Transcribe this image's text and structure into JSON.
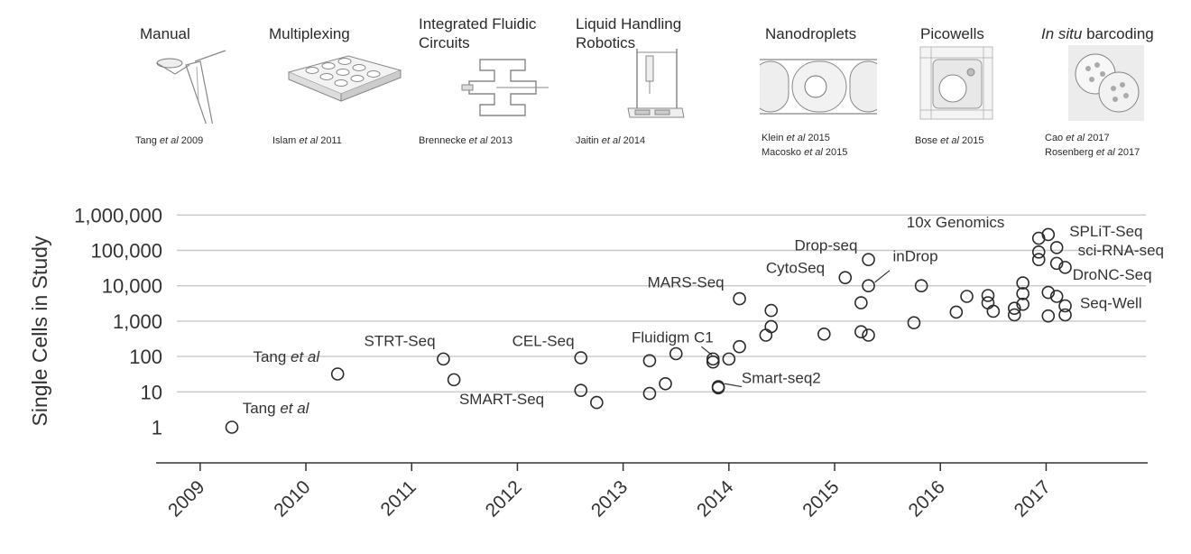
{
  "methods": [
    {
      "title": "Manual",
      "ref_lines": [
        {
          "a": "Tang ",
          "i": "et al",
          "b": " 2009"
        }
      ]
    },
    {
      "title": "Multiplexing",
      "ref_lines": [
        {
          "a": "Islam ",
          "i": "et al",
          "b": " 2011"
        }
      ]
    },
    {
      "title_lines": [
        "Integrated Fluidic",
        "Circuits"
      ],
      "ref_lines": [
        {
          "a": "Brennecke ",
          "i": "et al",
          "b": " 2013"
        }
      ]
    },
    {
      "title_lines": [
        "Liquid Handling",
        "Robotics"
      ],
      "ref_lines": [
        {
          "a": "Jaitin ",
          "i": "et al",
          "b": " 2014"
        }
      ]
    },
    {
      "title": "Nanodroplets",
      "ref_lines": [
        {
          "a": "Klein ",
          "i": "et al",
          "b": " 2015"
        },
        {
          "a": "Macosko ",
          "i": "et al",
          "b": " 2015"
        }
      ]
    },
    {
      "title": "Picowells",
      "ref_lines": [
        {
          "a": "Bose ",
          "i": "et al",
          "b": " 2015"
        }
      ]
    },
    {
      "title_italic": "In situ",
      "title_rest": " barcoding",
      "ref_lines": [
        {
          "a": "Cao ",
          "i": "et al",
          "b": " 2017"
        },
        {
          "a": "Rosenberg ",
          "i": "et al",
          "b": " 2017"
        }
      ]
    }
  ],
  "chart_data": {
    "type": "scatter",
    "ylabel": "Single Cells in Study",
    "xlabel": "",
    "y_scale": "log",
    "ylim": [
      1,
      1000000
    ],
    "y_ticks": [
      1,
      10,
      100,
      1000,
      10000,
      100000,
      1000000
    ],
    "y_tick_labels": [
      "1",
      "10",
      "100",
      "1,000",
      "10,000",
      "100,000",
      "1,000,000"
    ],
    "xlim": [
      2009.0,
      2017.7
    ],
    "x_ticks": [
      2009,
      2010,
      2011,
      2012,
      2013,
      2014,
      2015,
      2016,
      2017
    ],
    "x_tick_labels": [
      "2009",
      "2010",
      "2011",
      "2012",
      "2013",
      "2014",
      "2015",
      "2016",
      "2017"
    ],
    "grid": "horizontal",
    "points": [
      {
        "x": 2009.3,
        "y": 1
      },
      {
        "x": 2010.3,
        "y": 32
      },
      {
        "x": 2011.3,
        "y": 85
      },
      {
        "x": 2011.4,
        "y": 22
      },
      {
        "x": 2012.6,
        "y": 92
      },
      {
        "x": 2012.6,
        "y": 11
      },
      {
        "x": 2012.75,
        "y": 5
      },
      {
        "x": 2013.25,
        "y": 76
      },
      {
        "x": 2013.25,
        "y": 9
      },
      {
        "x": 2013.4,
        "y": 17
      },
      {
        "x": 2013.5,
        "y": 120
      },
      {
        "x": 2013.85,
        "y": 85
      },
      {
        "x": 2013.85,
        "y": 70
      },
      {
        "x": 2013.9,
        "y": 14
      },
      {
        "x": 2013.9,
        "y": 13
      },
      {
        "x": 2014.0,
        "y": 85
      },
      {
        "x": 2014.1,
        "y": 4300
      },
      {
        "x": 2014.1,
        "y": 190
      },
      {
        "x": 2014.35,
        "y": 400
      },
      {
        "x": 2014.4,
        "y": 2000
      },
      {
        "x": 2014.4,
        "y": 700
      },
      {
        "x": 2014.9,
        "y": 430
      },
      {
        "x": 2015.1,
        "y": 17000
      },
      {
        "x": 2015.25,
        "y": 3300
      },
      {
        "x": 2015.25,
        "y": 500
      },
      {
        "x": 2015.32,
        "y": 55000
      },
      {
        "x": 2015.32,
        "y": 10000
      },
      {
        "x": 2015.32,
        "y": 400
      },
      {
        "x": 2015.75,
        "y": 900
      },
      {
        "x": 2015.82,
        "y": 10000
      },
      {
        "x": 2016.15,
        "y": 1800
      },
      {
        "x": 2016.25,
        "y": 5000
      },
      {
        "x": 2016.45,
        "y": 5300
      },
      {
        "x": 2016.45,
        "y": 3300
      },
      {
        "x": 2016.5,
        "y": 1900
      },
      {
        "x": 2016.7,
        "y": 2300
      },
      {
        "x": 2016.7,
        "y": 1500
      },
      {
        "x": 2016.78,
        "y": 12000
      },
      {
        "x": 2016.78,
        "y": 6000
      },
      {
        "x": 2016.78,
        "y": 3000
      },
      {
        "x": 2016.93,
        "y": 220000
      },
      {
        "x": 2016.93,
        "y": 90000
      },
      {
        "x": 2016.93,
        "y": 55000
      },
      {
        "x": 2017.02,
        "y": 280000
      },
      {
        "x": 2017.02,
        "y": 6500
      },
      {
        "x": 2017.02,
        "y": 1400
      },
      {
        "x": 2017.1,
        "y": 120000
      },
      {
        "x": 2017.1,
        "y": 43000
      },
      {
        "x": 2017.1,
        "y": 5000
      },
      {
        "x": 2017.18,
        "y": 33000
      },
      {
        "x": 2017.18,
        "y": 2700
      },
      {
        "x": 2017.18,
        "y": 1500
      }
    ],
    "annotations": [
      {
        "text": "Tang ",
        "italic": "et al",
        "x": 2009.4,
        "y": 2.5
      },
      {
        "text": "Tang ",
        "italic": "et al",
        "x": 2009.5,
        "y": 70
      },
      {
        "text": "STRT-Seq",
        "x": 2010.55,
        "y": 200
      },
      {
        "text": "CEL-Seq",
        "x": 2011.95,
        "y": 200
      },
      {
        "text": "SMART-Seq",
        "x": 2011.45,
        "y": 4.5
      },
      {
        "text": "Fluidigm C1",
        "x": 2013.08,
        "y": 250
      },
      {
        "text": "MARS-Seq",
        "x": 2013.23,
        "y": 9000
      },
      {
        "text": "Smart-seq2",
        "x": 2014.12,
        "y": 18
      },
      {
        "text": "CytoSeq",
        "x": 2014.35,
        "y": 23000
      },
      {
        "text": "Drop-seq",
        "x": 2014.62,
        "y": 100000
      },
      {
        "text": "inDrop",
        "x": 2015.55,
        "y": 50000
      },
      {
        "text": "10x Genomics",
        "x": 2015.68,
        "y": 450000
      },
      {
        "text": "SPLiT-Seq",
        "x": 2017.22,
        "y": 250000
      },
      {
        "text": "sci-RNA-seq",
        "x": 2017.3,
        "y": 72000
      },
      {
        "text": "DroNC-Seq",
        "x": 2017.25,
        "y": 15000
      },
      {
        "text": "Seq-Well",
        "x": 2017.32,
        "y": 2300
      }
    ],
    "leaders": [
      {
        "x1": 2013.74,
        "y1": 190,
        "x2": 2013.84,
        "y2": 110
      },
      {
        "x1": 2013.96,
        "y1": 17,
        "x2": 2014.12,
        "y2": 14
      },
      {
        "x1": 2015.38,
        "y1": 12500,
        "x2": 2015.52,
        "y2": 27000
      }
    ]
  }
}
